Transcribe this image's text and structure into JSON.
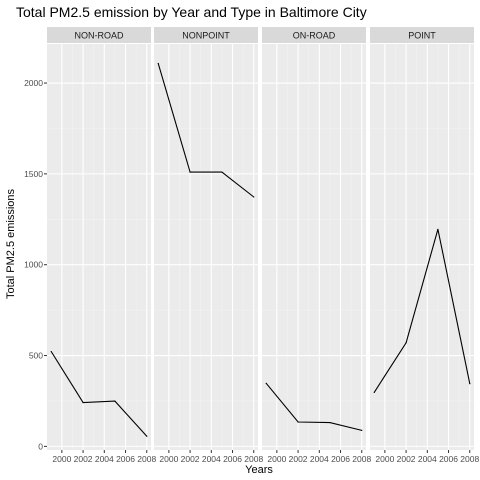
{
  "chart_data": {
    "type": "line",
    "title": "Total PM2.5 emission by Year and Type in Baltimore City",
    "xlabel": "Years",
    "ylabel": "Total PM2.5 emissions",
    "x": [
      1999,
      2002,
      2005,
      2008
    ],
    "xticks": [
      2000,
      2002,
      2004,
      2006,
      2008
    ],
    "xlim": [
      1998.6,
      2008.4
    ],
    "yticks": [
      0,
      500,
      1000,
      1500,
      2000
    ],
    "ylim": [
      -20,
      2215
    ],
    "grid": true,
    "legend": "none",
    "panels": [
      {
        "facet": "NON-ROAD",
        "values": [
          522,
          241,
          249,
          56
        ]
      },
      {
        "facet": "NONPOINT",
        "values": [
          2108,
          1510,
          1510,
          1373
        ]
      },
      {
        "facet": "ON-ROAD",
        "values": [
          347,
          134,
          131,
          88
        ]
      },
      {
        "facet": "POINT",
        "values": [
          297,
          570,
          1195,
          345
        ]
      }
    ],
    "colors": {
      "panel_bg": "#ebebeb",
      "strip_bg": "#d9d9d9",
      "grid_major": "#ffffff",
      "grid_minor": "#f2f2f2",
      "line": "#000000"
    }
  }
}
